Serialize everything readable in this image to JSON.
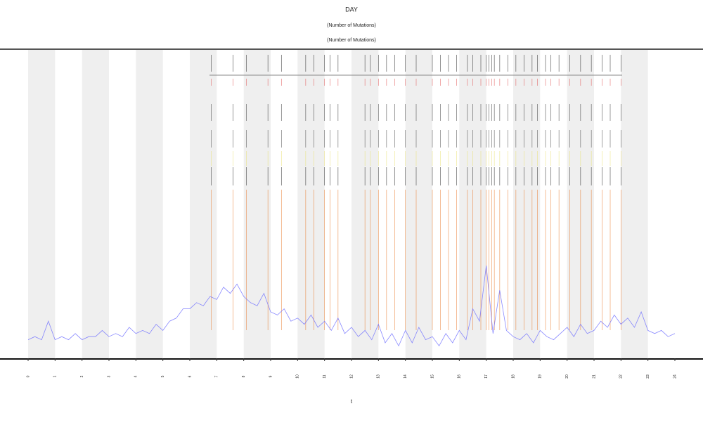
{
  "chart_data": {
    "type": "line",
    "title": "DAY",
    "subtitle": [
      "(Number of Mutations)",
      "(Number of Mutations)"
    ],
    "xlabel": "t",
    "xlim": [
      0,
      24
    ],
    "ylim": [
      0,
      100
    ],
    "xticks": [
      0,
      1,
      2,
      3,
      4,
      5,
      6,
      7,
      8,
      9,
      10,
      11,
      12,
      13,
      14,
      15,
      16,
      17,
      18,
      19,
      20,
      21,
      22,
      23,
      24
    ],
    "bands": true,
    "color": "#6b6bff",
    "x": [
      0,
      0.25,
      0.5,
      0.75,
      1,
      1.25,
      1.5,
      1.75,
      2,
      2.25,
      2.5,
      2.75,
      3,
      3.25,
      3.5,
      3.75,
      4,
      4.25,
      4.5,
      4.75,
      5,
      5.25,
      5.5,
      5.75,
      6,
      6.25,
      6.5,
      6.75,
      7,
      7.25,
      7.5,
      7.75,
      8,
      8.25,
      8.5,
      8.75,
      9,
      9.25,
      9.5,
      9.75,
      10,
      10.25,
      10.5,
      10.75,
      11,
      11.25,
      11.5,
      11.75,
      12,
      12.25,
      12.5,
      12.75,
      13,
      13.25,
      13.5,
      13.75,
      14,
      14.25,
      14.5,
      14.75,
      15,
      15.25,
      15.5,
      15.75,
      16,
      16.25,
      16.5,
      16.75,
      17,
      17.25,
      17.5,
      17.75,
      18,
      18.25,
      18.5,
      18.75,
      19,
      19.25,
      19.5,
      19.75,
      20,
      20.25,
      20.5,
      20.75,
      21,
      21.25,
      21.5,
      21.75,
      22,
      22.25,
      22.5,
      22.75,
      23,
      23.25,
      23.5,
      23.75,
      24
    ],
    "values": [
      6,
      7,
      6,
      12,
      6,
      7,
      6,
      8,
      6,
      7,
      7,
      9,
      7,
      8,
      7,
      10,
      8,
      9,
      8,
      11,
      9,
      12,
      13,
      16,
      16,
      18,
      17,
      20,
      19,
      23,
      21,
      24,
      20,
      18,
      17,
      21,
      15,
      14,
      16,
      12,
      13,
      11,
      14,
      10,
      12,
      9,
      13,
      8,
      10,
      7,
      9,
      6,
      11,
      5,
      8,
      4,
      9,
      5,
      10,
      6,
      7,
      4,
      8,
      5,
      9,
      6,
      16,
      12,
      30,
      8,
      22,
      9,
      7,
      6,
      8,
      5,
      9,
      7,
      6,
      8,
      10,
      7,
      11,
      8,
      9,
      12,
      10,
      14,
      11,
      13,
      10,
      15,
      9,
      8,
      9,
      7,
      8
    ],
    "events": [
      6.8,
      7.6,
      8.1,
      8.9,
      9.4,
      10.3,
      10.6,
      11.0,
      11.2,
      11.5,
      12.5,
      12.7,
      13.0,
      13.3,
      13.6,
      14.0,
      14.4,
      15.0,
      15.3,
      15.6,
      15.9,
      16.3,
      16.5,
      16.8,
      17.0,
      17.1,
      17.2,
      17.3,
      17.5,
      17.8,
      18.1,
      18.4,
      18.7,
      18.9,
      19.2,
      19.4,
      19.7,
      20.1,
      20.5,
      20.9,
      21.3,
      21.6,
      22.0
    ],
    "event_rows": [
      {
        "color": "#222222"
      },
      {
        "color": "#e05050"
      },
      {
        "color": "#333333"
      },
      {
        "color": "#444444"
      },
      {
        "color": "#e8e070"
      },
      {
        "color": "#222222"
      },
      {
        "color": "#e8782a"
      }
    ]
  }
}
